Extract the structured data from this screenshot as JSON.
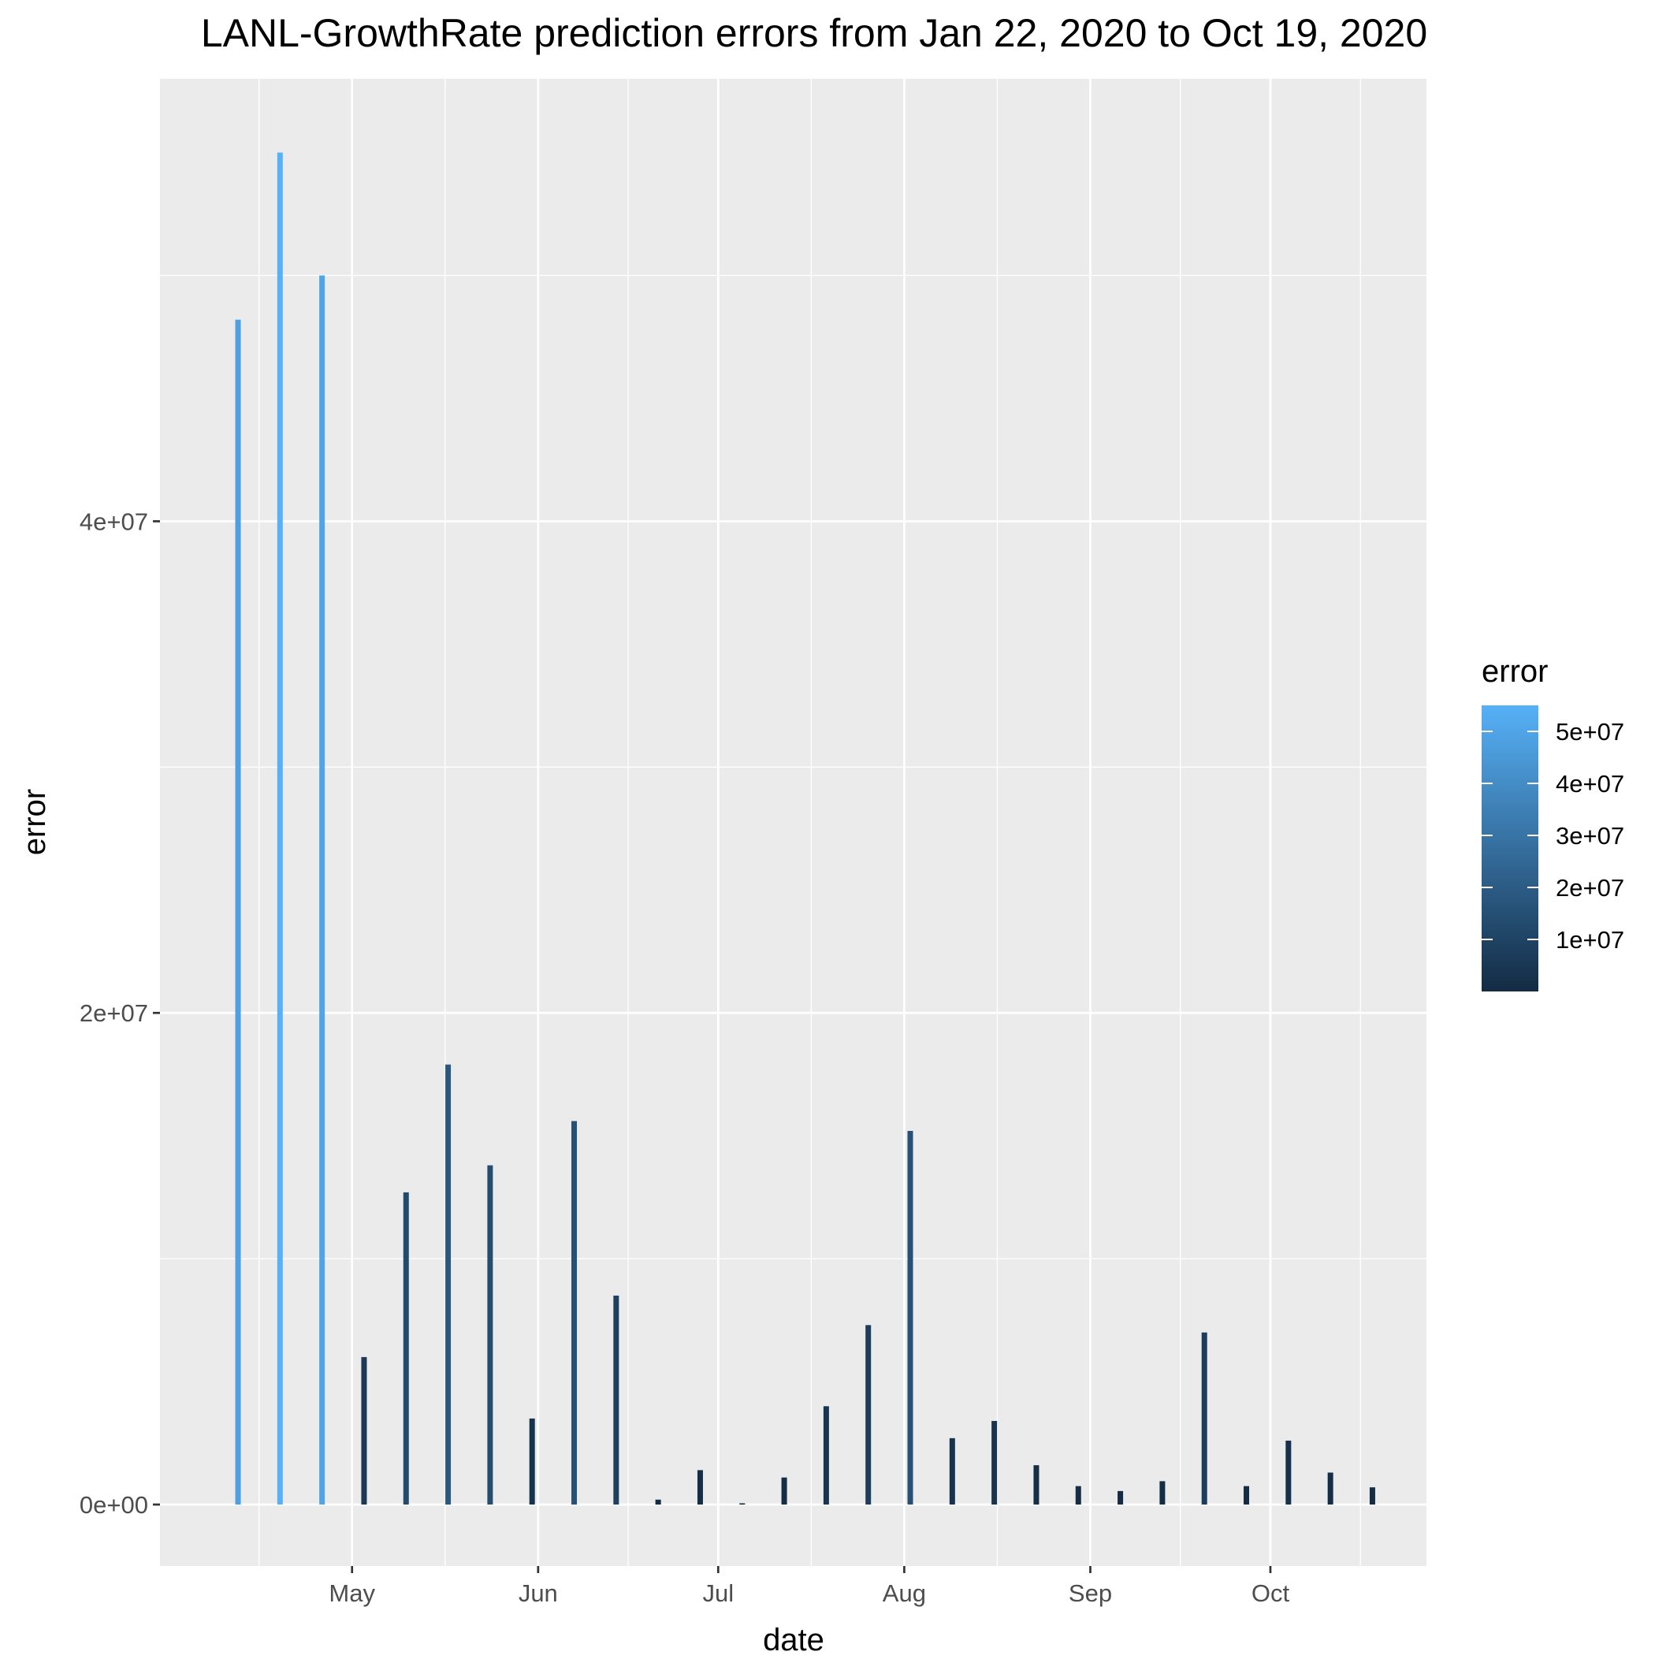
{
  "chart_data": {
    "type": "bar",
    "title": "LANL-GrowthRate prediction errors from Jan 22, 2020 to Oct 19, 2020",
    "xlabel": "date",
    "ylabel": "error",
    "x_axis": {
      "type": "date",
      "range": [
        "2020-03-30",
        "2020-10-27"
      ],
      "ticks": [
        {
          "date": "2020-05-01",
          "label": "May"
        },
        {
          "date": "2020-06-01",
          "label": "Jun"
        },
        {
          "date": "2020-07-01",
          "label": "Jul"
        },
        {
          "date": "2020-08-01",
          "label": "Aug"
        },
        {
          "date": "2020-09-01",
          "label": "Sep"
        },
        {
          "date": "2020-10-01",
          "label": "Oct"
        }
      ]
    },
    "y_axis": {
      "range": [
        -2500000,
        58000000
      ],
      "ticks": [
        {
          "value": 0,
          "label": "0e+00"
        },
        {
          "value": 20000000,
          "label": "2e+07"
        },
        {
          "value": 40000000,
          "label": "4e+07"
        }
      ]
    },
    "grid": true,
    "legend": {
      "title": "error",
      "placement": "right",
      "min": 0,
      "max": 55000000,
      "ticks": [
        {
          "value": 10000000,
          "label": "1e+07"
        },
        {
          "value": 20000000,
          "label": "2e+07"
        },
        {
          "value": 30000000,
          "label": "3e+07"
        },
        {
          "value": 40000000,
          "label": "4e+07"
        },
        {
          "value": 50000000,
          "label": "5e+07"
        }
      ],
      "colors": {
        "low": "#132b43",
        "high": "#56b1f7"
      }
    },
    "bars": [
      {
        "date": "2020-04-12",
        "value": 48200000
      },
      {
        "date": "2020-04-19",
        "value": 55000000
      },
      {
        "date": "2020-04-26",
        "value": 50000000
      },
      {
        "date": "2020-05-03",
        "value": 6000000
      },
      {
        "date": "2020-05-10",
        "value": 12700000
      },
      {
        "date": "2020-05-17",
        "value": 17900000
      },
      {
        "date": "2020-05-24",
        "value": 13800000
      },
      {
        "date": "2020-05-31",
        "value": 3500000
      },
      {
        "date": "2020-06-07",
        "value": 15600000
      },
      {
        "date": "2020-06-14",
        "value": 8500000
      },
      {
        "date": "2020-06-21",
        "value": 200000
      },
      {
        "date": "2020-06-28",
        "value": 1400000
      },
      {
        "date": "2020-07-05",
        "value": 50000
      },
      {
        "date": "2020-07-12",
        "value": 1100000
      },
      {
        "date": "2020-07-19",
        "value": 4000000
      },
      {
        "date": "2020-07-26",
        "value": 7300000
      },
      {
        "date": "2020-08-02",
        "value": 15200000
      },
      {
        "date": "2020-08-09",
        "value": 2700000
      },
      {
        "date": "2020-08-16",
        "value": 3400000
      },
      {
        "date": "2020-08-23",
        "value": 1600000
      },
      {
        "date": "2020-08-30",
        "value": 750000
      },
      {
        "date": "2020-09-06",
        "value": 550000
      },
      {
        "date": "2020-09-13",
        "value": 950000
      },
      {
        "date": "2020-09-20",
        "value": 7000000
      },
      {
        "date": "2020-09-27",
        "value": 750000
      },
      {
        "date": "2020-10-04",
        "value": 2600000
      },
      {
        "date": "2020-10-11",
        "value": 1300000
      },
      {
        "date": "2020-10-18",
        "value": 700000
      }
    ]
  }
}
